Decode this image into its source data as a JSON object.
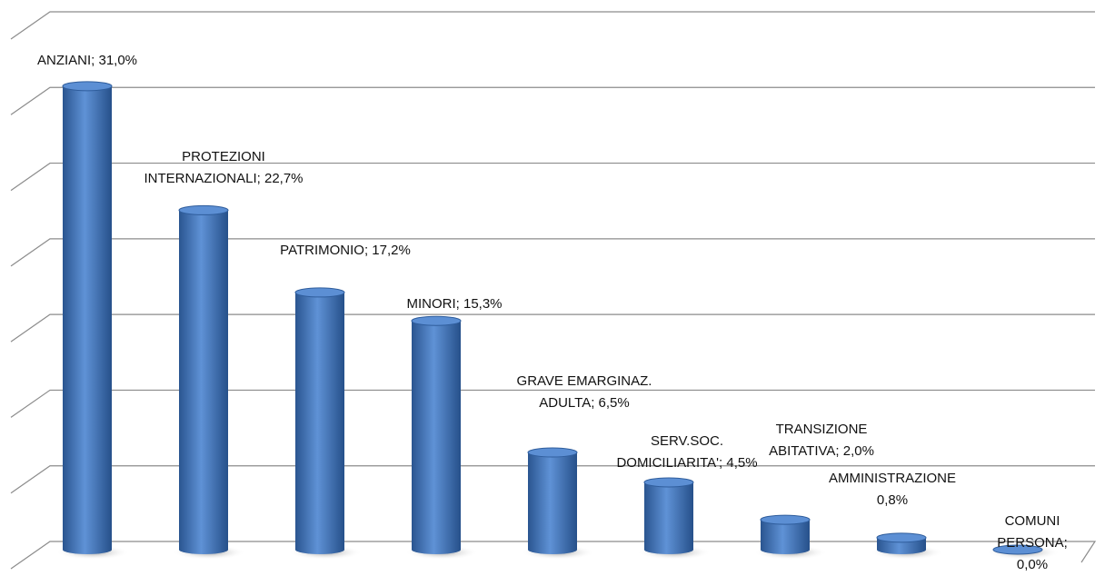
{
  "chart_data": {
    "type": "bar",
    "value_labels": [
      "ANZIANI; 31,0%",
      "PROTEZIONI\nINTERNAZIONALI; 22,7%",
      "PATRIMONIO; 17,2%",
      "MINORI; 15,3%",
      "GRAVE EMARGINAZ.\nADULTA; 6,5%",
      "SERV.SOC.\nDOMICILIARITA'; 4,5%",
      "TRANSIZIONE\nABITATIVA; 2,0%",
      "AMMINISTRAZIONE\n0,8%",
      "COMUNI\nPERSONA; 0,0%"
    ],
    "values": [
      31.0,
      22.7,
      17.2,
      15.3,
      6.5,
      4.5,
      2.0,
      0.8,
      0.0
    ],
    "color": "#4a7cc0",
    "ylim": [
      0,
      35
    ],
    "yticks": [
      0,
      5,
      10,
      15,
      20,
      25,
      30,
      35
    ],
    "grid": true
  }
}
